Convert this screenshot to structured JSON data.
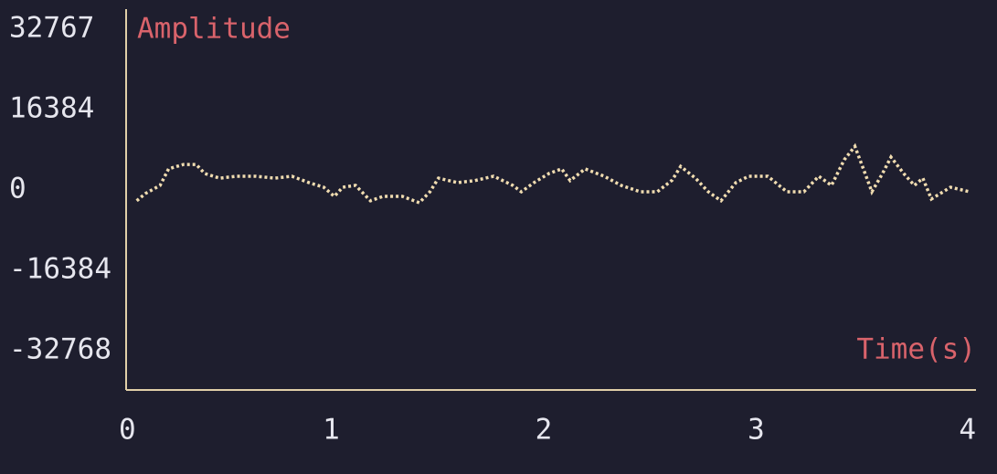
{
  "chart_data": {
    "type": "line",
    "title": "Amplitude",
    "x_label": "Time(s)",
    "x": [
      0.05,
      0.09,
      0.16,
      0.2,
      0.27,
      0.33,
      0.37,
      0.44,
      0.52,
      0.61,
      0.7,
      0.78,
      0.86,
      0.93,
      0.98,
      1.02,
      1.08,
      1.15,
      1.21,
      1.3,
      1.38,
      1.43,
      1.47,
      1.56,
      1.64,
      1.73,
      1.82,
      1.86,
      1.92,
      1.99,
      2.05,
      2.09,
      2.16,
      2.25,
      2.33,
      2.42,
      2.5,
      2.57,
      2.61,
      2.68,
      2.74,
      2.8,
      2.87,
      2.93,
      3.02,
      3.11,
      3.19,
      3.26,
      3.32,
      3.38,
      3.43,
      3.47,
      3.51,
      3.56,
      3.6,
      3.66,
      3.71,
      3.75,
      3.79,
      3.88,
      3.97
    ],
    "series": [
      {
        "color": "#f0dcb0",
        "values": [
          -2200,
          -750,
          930,
          4300,
          5200,
          5200,
          3350,
          2400,
          2800,
          2800,
          2400,
          2800,
          1500,
          560,
          -1300,
          560,
          930,
          -2200,
          -1300,
          -1300,
          -2600,
          -370,
          2400,
          1500,
          1900,
          2800,
          930,
          -370,
          1500,
          3350,
          4300,
          1900,
          4300,
          2800,
          930,
          -370,
          -370,
          2000,
          4800,
          2400,
          -370,
          -2200,
          1500,
          2800,
          2800,
          -370,
          -370,
          2800,
          930,
          6150,
          8900,
          4300,
          -370,
          3350,
          6700,
          3350,
          930,
          2400,
          -1850,
          560,
          -370
        ]
      }
    ],
    "xlim": [
      0,
      4
    ],
    "xticks": [
      0,
      1,
      2,
      3,
      4
    ],
    "ylim": [
      -32768,
      32767
    ],
    "yticks": [
      -32768,
      -16384,
      0,
      16384,
      32767
    ],
    "axis_color": "#e0cfa8",
    "label_color": "#d9636b"
  }
}
